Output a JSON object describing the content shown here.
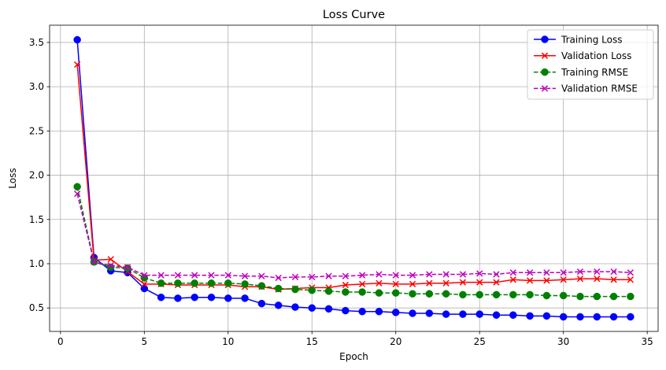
{
  "chart_data": {
    "type": "line",
    "title": "Loss Curve",
    "xlabel": "Epoch",
    "ylabel": "Loss",
    "xlim": [
      -0.65,
      35.65
    ],
    "ylim": [
      0.235,
      3.695
    ],
    "xticks": [
      "0",
      "5",
      "10",
      "15",
      "20",
      "25",
      "30",
      "35"
    ],
    "xtick_values": [
      0,
      5,
      10,
      15,
      20,
      25,
      30,
      35
    ],
    "yticks": [
      "0.5",
      "1.0",
      "1.5",
      "2.0",
      "2.5",
      "3.0",
      "3.5"
    ],
    "ytick_values": [
      0.5,
      1.0,
      1.5,
      2.0,
      2.5,
      3.0,
      3.5
    ],
    "grid": true,
    "legend_position": "upper right",
    "x": [
      1,
      2,
      3,
      4,
      5,
      6,
      7,
      8,
      9,
      10,
      11,
      12,
      13,
      14,
      15,
      16,
      17,
      18,
      19,
      20,
      21,
      22,
      23,
      24,
      25,
      26,
      27,
      28,
      29,
      30,
      31,
      32,
      33,
      34
    ],
    "series": [
      {
        "name": "Training Loss",
        "color": "#0000ff",
        "line_style": "solid",
        "marker": "circle",
        "values": [
          3.53,
          1.07,
          0.92,
          0.9,
          0.72,
          0.62,
          0.61,
          0.62,
          0.62,
          0.61,
          0.61,
          0.55,
          0.53,
          0.51,
          0.5,
          0.49,
          0.47,
          0.46,
          0.46,
          0.45,
          0.44,
          0.44,
          0.43,
          0.43,
          0.43,
          0.42,
          0.42,
          0.41,
          0.41,
          0.4,
          0.4,
          0.4,
          0.4,
          0.4
        ]
      },
      {
        "name": "Validation Loss",
        "color": "#ff0000",
        "line_style": "solid",
        "marker": "x",
        "values": [
          3.25,
          1.04,
          1.05,
          0.91,
          0.77,
          0.77,
          0.76,
          0.76,
          0.76,
          0.76,
          0.74,
          0.74,
          0.71,
          0.72,
          0.73,
          0.73,
          0.76,
          0.77,
          0.78,
          0.77,
          0.77,
          0.78,
          0.78,
          0.79,
          0.79,
          0.79,
          0.82,
          0.81,
          0.81,
          0.82,
          0.83,
          0.83,
          0.82,
          0.82
        ]
      },
      {
        "name": "Training RMSE",
        "color": "#008000",
        "line_style": "dashed",
        "marker": "circle",
        "values": [
          1.87,
          1.02,
          0.96,
          0.95,
          0.84,
          0.78,
          0.78,
          0.78,
          0.78,
          0.78,
          0.77,
          0.75,
          0.72,
          0.71,
          0.7,
          0.69,
          0.68,
          0.68,
          0.67,
          0.67,
          0.66,
          0.66,
          0.66,
          0.65,
          0.65,
          0.65,
          0.65,
          0.65,
          0.64,
          0.64,
          0.63,
          0.63,
          0.63,
          0.63
        ]
      },
      {
        "name": "Validation RMSE",
        "color": "#bf00bf",
        "line_style": "dashed",
        "marker": "x",
        "values": [
          1.79,
          1.02,
          0.98,
          0.96,
          0.87,
          0.87,
          0.87,
          0.87,
          0.87,
          0.87,
          0.86,
          0.86,
          0.84,
          0.85,
          0.85,
          0.86,
          0.86,
          0.87,
          0.88,
          0.87,
          0.87,
          0.88,
          0.88,
          0.88,
          0.89,
          0.88,
          0.9,
          0.9,
          0.9,
          0.9,
          0.91,
          0.91,
          0.91,
          0.9
        ]
      }
    ]
  }
}
